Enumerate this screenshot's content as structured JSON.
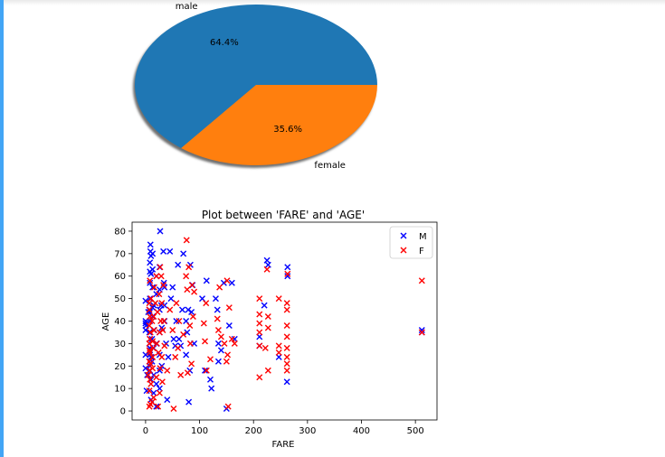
{
  "chart_data": [
    {
      "type": "pie",
      "labels": [
        "male",
        "female"
      ],
      "values": [
        64.4,
        35.6
      ],
      "value_labels": [
        "64.4%",
        "35.6%"
      ],
      "colors": [
        "#1f77b4",
        "#ff7f0e"
      ],
      "shadow": true
    },
    {
      "type": "scatter",
      "title": "Plot between 'FARE' and 'AGE'",
      "xlabel": "FARE",
      "ylabel": "AGE",
      "xlim": [
        -25,
        540
      ],
      "ylim": [
        -4,
        84
      ],
      "xticks": [
        0,
        100,
        200,
        300,
        400,
        500
      ],
      "yticks": [
        0,
        10,
        20,
        30,
        40,
        50,
        60,
        70,
        80
      ],
      "grid": false,
      "legend_position": "top-right",
      "marker": "x",
      "series": [
        {
          "name": "M",
          "color": "#0000ff",
          "points": [
            [
              0,
              39
            ],
            [
              0,
              36
            ],
            [
              0,
              25
            ],
            [
              0,
              19
            ],
            [
              0,
              40
            ],
            [
              0,
              49
            ],
            [
              1,
              38
            ],
            [
              2,
              9
            ],
            [
              3,
              16
            ],
            [
              5,
              44
            ],
            [
              7,
              22
            ],
            [
              7,
              30
            ],
            [
              7,
              35
            ],
            [
              7,
              45
            ],
            [
              8,
              18
            ],
            [
              8,
              20
            ],
            [
              8,
              25
            ],
            [
              8,
              27
            ],
            [
              8,
              28
            ],
            [
              8,
              32
            ],
            [
              8,
              40
            ],
            [
              8,
              44
            ],
            [
              8,
              50
            ],
            [
              8,
              57
            ],
            [
              8,
              62
            ],
            [
              8,
              66
            ],
            [
              9,
              71
            ],
            [
              9,
              74
            ],
            [
              10,
              69
            ],
            [
              10,
              61
            ],
            [
              10,
              24
            ],
            [
              10,
              14
            ],
            [
              10,
              5
            ],
            [
              12,
              22
            ],
            [
              12,
              32
            ],
            [
              13,
              42
            ],
            [
              13,
              46
            ],
            [
              13,
              55
            ],
            [
              13,
              63
            ],
            [
              13,
              70
            ],
            [
              15,
              8
            ],
            [
              15,
              16
            ],
            [
              15,
              28
            ],
            [
              15,
              36
            ],
            [
              15,
              47
            ],
            [
              20,
              2
            ],
            [
              20,
              12
            ],
            [
              20,
              30
            ],
            [
              20,
              52
            ],
            [
              20,
              60
            ],
            [
              26,
              10
            ],
            [
              26,
              18
            ],
            [
              26,
              25
            ],
            [
              26,
              35
            ],
            [
              26,
              45
            ],
            [
              26,
              54
            ],
            [
              26,
              64
            ],
            [
              27,
              80
            ],
            [
              29,
              47
            ],
            [
              30,
              20
            ],
            [
              30,
              37
            ],
            [
              33,
              71
            ],
            [
              34,
              57
            ],
            [
              35,
              40
            ],
            [
              35,
              47
            ],
            [
              35,
              55
            ],
            [
              38,
              30
            ],
            [
              40,
              5
            ],
            [
              42,
              24
            ],
            [
              45,
              71
            ],
            [
              47,
              50
            ],
            [
              50,
              55
            ],
            [
              52,
              32
            ],
            [
              55,
              29
            ],
            [
              57,
              40
            ],
            [
              60,
              65
            ],
            [
              62,
              32
            ],
            [
              65,
              29
            ],
            [
              68,
              45
            ],
            [
              70,
              70
            ],
            [
              75,
              25
            ],
            [
              75,
              40
            ],
            [
              77,
              35
            ],
            [
              79,
              45
            ],
            [
              80,
              4
            ],
            [
              82,
              18
            ],
            [
              83,
              65
            ],
            [
              85,
              44
            ],
            [
              87,
              56
            ],
            [
              90,
              30
            ],
            [
              105,
              50
            ],
            [
              110,
              18
            ],
            [
              113,
              58
            ],
            [
              120,
              14
            ],
            [
              122,
              10
            ],
            [
              130,
              50
            ],
            [
              133,
              45
            ],
            [
              135,
              30
            ],
            [
              135,
              22
            ],
            [
              140,
              27
            ],
            [
              145,
              57
            ],
            [
              150,
              1
            ],
            [
              155,
              38
            ],
            [
              160,
              57
            ],
            [
              165,
              32
            ],
            [
              211,
              33
            ],
            [
              211,
              29
            ],
            [
              220,
              47
            ],
            [
              225,
              67
            ],
            [
              227,
              65
            ],
            [
              247,
              24
            ],
            [
              262,
              13
            ],
            [
              263,
              60
            ],
            [
              263,
              64
            ],
            [
              512,
              36
            ],
            [
              512,
              35
            ]
          ]
        },
        {
          "name": "F",
          "color": "#ff0000",
          "points": [
            [
              5,
              16
            ],
            [
              7,
              2
            ],
            [
              7,
              9
            ],
            [
              7,
              18
            ],
            [
              7,
              22
            ],
            [
              7,
              27
            ],
            [
              7,
              30
            ],
            [
              7,
              38
            ],
            [
              7,
              45
            ],
            [
              7,
              48
            ],
            [
              8,
              14
            ],
            [
              8,
              26
            ],
            [
              8,
              32
            ],
            [
              8,
              42
            ],
            [
              8,
              58
            ],
            [
              9,
              3
            ],
            [
              9,
              21
            ],
            [
              9,
              35
            ],
            [
              10,
              50
            ],
            [
              10,
              12
            ],
            [
              12,
              4
            ],
            [
              12,
              40
            ],
            [
              13,
              24
            ],
            [
              13,
              31
            ],
            [
              13,
              19
            ],
            [
              14,
              28
            ],
            [
              15,
              6
            ],
            [
              15,
              42
            ],
            [
              16,
              55
            ],
            [
              16,
              36
            ],
            [
              18,
              48
            ],
            [
              20,
              60
            ],
            [
              20,
              15
            ],
            [
              21,
              30
            ],
            [
              22,
              44
            ],
            [
              23,
              2
            ],
            [
              24,
              26
            ],
            [
              25,
              52
            ],
            [
              26,
              35
            ],
            [
              26,
              8
            ],
            [
              27,
              64
            ],
            [
              27,
              19
            ],
            [
              28,
              40
            ],
            [
              29,
              60
            ],
            [
              30,
              24
            ],
            [
              30,
              48
            ],
            [
              31,
              13
            ],
            [
              32,
              36
            ],
            [
              33,
              56
            ],
            [
              34,
              40
            ],
            [
              35,
              29
            ],
            [
              40,
              18
            ],
            [
              45,
              45
            ],
            [
              50,
              36
            ],
            [
              52,
              1
            ],
            [
              55,
              24
            ],
            [
              57,
              48
            ],
            [
              60,
              28
            ],
            [
              62,
              40
            ],
            [
              65,
              16
            ],
            [
              70,
              34
            ],
            [
              75,
              60
            ],
            [
              76,
              76
            ],
            [
              77,
              54
            ],
            [
              78,
              17
            ],
            [
              80,
              64
            ],
            [
              82,
              38
            ],
            [
              83,
              30
            ],
            [
              85,
              21
            ],
            [
              86,
              56
            ],
            [
              88,
              42
            ],
            [
              90,
              53
            ],
            [
              108,
              39
            ],
            [
              110,
              31
            ],
            [
              112,
              48
            ],
            [
              113,
              18
            ],
            [
              120,
              23
            ],
            [
              133,
              41
            ],
            [
              135,
              36
            ],
            [
              137,
              55
            ],
            [
              140,
              33
            ],
            [
              146,
              30
            ],
            [
              150,
              22
            ],
            [
              151,
              58
            ],
            [
              152,
              25
            ],
            [
              153,
              2
            ],
            [
              155,
              46
            ],
            [
              160,
              32
            ],
            [
              165,
              30
            ],
            [
              211,
              50
            ],
            [
              211,
              43
            ],
            [
              211,
              39
            ],
            [
              211,
              35
            ],
            [
              211,
              29
            ],
            [
              211,
              15
            ],
            [
              222,
              28
            ],
            [
              225,
              63
            ],
            [
              227,
              42
            ],
            [
              227,
              37
            ],
            [
              227,
              18
            ],
            [
              247,
              50
            ],
            [
              247,
              29
            ],
            [
              247,
              26
            ],
            [
              262,
              48
            ],
            [
              262,
              45
            ],
            [
              262,
              38
            ],
            [
              262,
              33
            ],
            [
              262,
              28
            ],
            [
              262,
              24
            ],
            [
              262,
              21
            ],
            [
              262,
              18
            ],
            [
              263,
              61
            ],
            [
              512,
              58
            ],
            [
              512,
              35
            ]
          ]
        }
      ]
    }
  ]
}
